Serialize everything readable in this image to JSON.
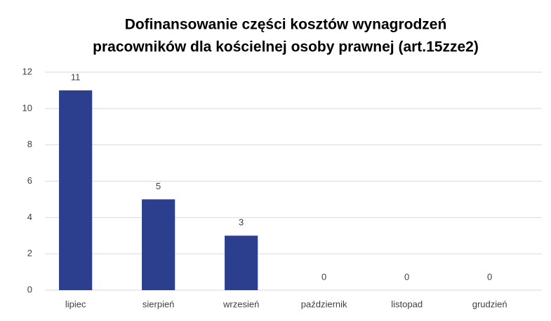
{
  "chart_data": {
    "type": "bar",
    "title": [
      "Dofinansowanie części kosztów wynagrodzeń",
      "pracowników dla kościelnej osoby prawnej (art.15zze2)"
    ],
    "categories": [
      "lipiec",
      "sierpień",
      "wrzesień",
      "październik",
      "listopad",
      "grudzień"
    ],
    "values": [
      11,
      5,
      3,
      0,
      0,
      0
    ],
    "color": "#2b3f8e",
    "ylim": [
      0,
      12
    ],
    "yticks": [
      0,
      2,
      4,
      6,
      8,
      10,
      12
    ],
    "grid": true
  }
}
